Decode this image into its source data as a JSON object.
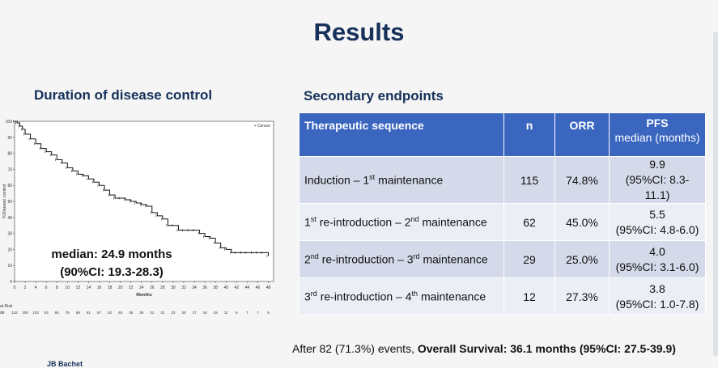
{
  "slide": {
    "title": "Results",
    "left_heading": "Duration of disease control",
    "right_heading": "Secondary endpoints",
    "author": "JB Bachet"
  },
  "table": {
    "headers": {
      "sequence": "Therapeutic sequence",
      "n": "n",
      "orr": "ORR",
      "pfs": "PFS",
      "pfs_sub": "median (months)"
    },
    "rows": [
      {
        "a": "Induction – 1",
        "a_sup": "st",
        "b": " maintenance",
        "b_sup": "",
        "c": "",
        "n": "115",
        "orr": "74.8%",
        "pfs": "9.9",
        "ci": "(95%CI: 8.3-11.1)"
      },
      {
        "a": "1",
        "a_sup": "st",
        "b": " re-introduction – 2",
        "b_sup": "nd",
        "c": " maintenance",
        "n": "62",
        "orr": "45.0%",
        "pfs": "5.5",
        "ci": "(95%CI: 4.8-6.0)"
      },
      {
        "a": "2",
        "a_sup": "nd",
        "b": " re-introduction – 3",
        "b_sup": "rd",
        "c": " maintenance",
        "n": "29",
        "orr": "25.0%",
        "pfs": "4.0",
        "ci": "(95%CI: 3.1-6.0)"
      },
      {
        "a": "3",
        "a_sup": "rd",
        "b": " re-introduction – 4",
        "b_sup": "th",
        "c": " maintenance",
        "n": "12",
        "orr": "27.3%",
        "pfs": "3.8",
        "ci": "(95%CI: 1.0-7.8)"
      }
    ]
  },
  "os": {
    "prefix": "After 82 (71.3%) events,",
    "bold": "Overall Survival: 36.1 months (95%CI: 27.5-39.9)"
  },
  "km": {
    "annotation_1": "median: 24.9 months",
    "annotation_2": "(90%CI: 19.3-28.3)"
  },
  "chart_data": {
    "type": "line",
    "title": "",
    "xlabel": "Months",
    "ylabel": "%Disease control",
    "legend": "Censor",
    "xlim": [
      0,
      49
    ],
    "ylim": [
      0,
      100
    ],
    "x_ticks": [
      0,
      2,
      4,
      6,
      8,
      10,
      12,
      14,
      16,
      18,
      20,
      22,
      24,
      26,
      28,
      30,
      32,
      34,
      36,
      38,
      40,
      42,
      44,
      46,
      48
    ],
    "y_ticks": [
      0,
      10,
      20,
      30,
      40,
      50,
      60,
      70,
      80,
      90,
      100
    ],
    "at_risk_label": "at Risk",
    "at_risk_row_label": "de",
    "at_risk": [
      "115",
      "109",
      "102",
      "93",
      "84",
      "76",
      "69",
      "61",
      "57",
      "52",
      "45",
      "39",
      "36",
      "31",
      "31",
      "23",
      "20",
      "17",
      "16",
      "15",
      "11",
      "9",
      "7",
      "7",
      "5"
    ],
    "series": [
      {
        "name": "Disease control",
        "x": [
          0,
          0.5,
          1,
          1.5,
          2,
          3,
          4,
          5,
          6,
          7,
          8,
          9,
          10,
          11,
          12,
          13,
          14,
          15,
          16,
          17,
          18,
          19,
          20,
          21,
          22,
          23,
          24,
          25,
          26,
          27,
          28,
          29,
          30,
          31,
          32,
          33,
          34,
          35,
          36,
          37,
          38,
          39,
          40,
          41,
          42,
          43,
          44,
          45,
          46,
          47,
          48
        ],
        "y": [
          100,
          99,
          97,
          95,
          92,
          89,
          86,
          83,
          81,
          79,
          76,
          74,
          71,
          69,
          67,
          66,
          64,
          62,
          60,
          57,
          54,
          52,
          52,
          51,
          50,
          49,
          48,
          47,
          43,
          41,
          39,
          35,
          35,
          32,
          32,
          32,
          32,
          30,
          28,
          27,
          24,
          21,
          20,
          18,
          18,
          18,
          18,
          18,
          18,
          18,
          16
        ]
      }
    ]
  }
}
